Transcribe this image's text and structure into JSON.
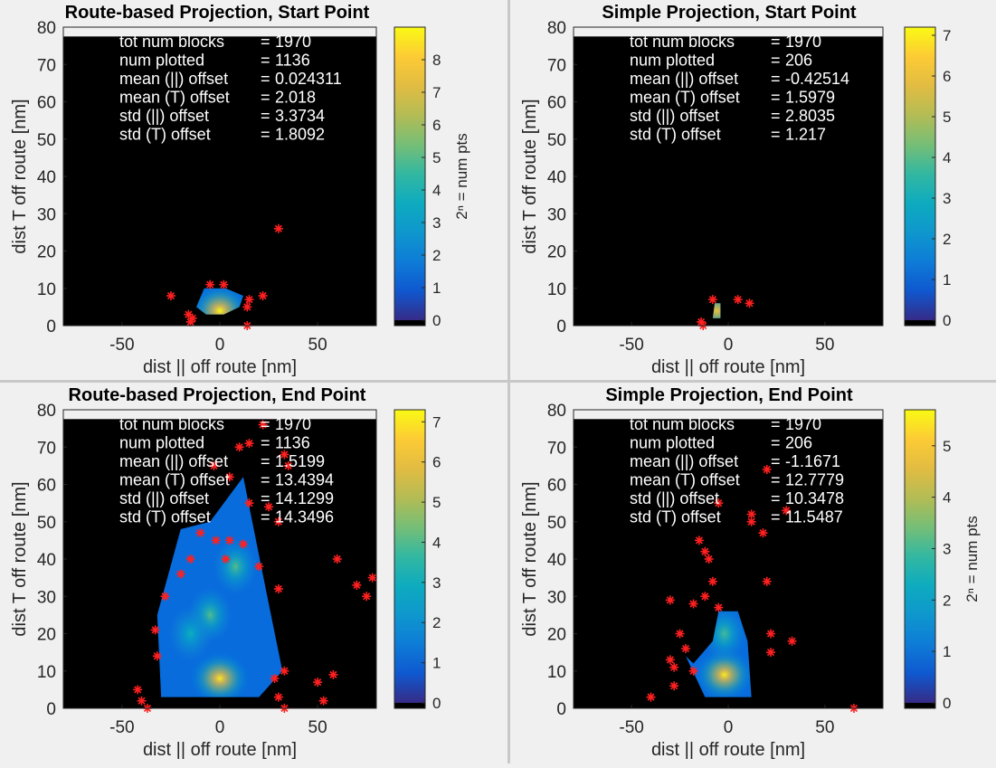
{
  "figure": {
    "background": "#f0f0f0",
    "plot_background": "#000000"
  },
  "chart_data": [
    {
      "type": "heatmap",
      "title": "Route-based Projection, Start Point",
      "xlabel": "dist || off route [nm]",
      "ylabel": "dist T off route [nm]",
      "xlim": [
        -80,
        80
      ],
      "ylim": [
        0,
        80
      ],
      "xticks": [
        -50,
        0,
        50
      ],
      "yticks": [
        0,
        10,
        20,
        30,
        40,
        50,
        60,
        70,
        80
      ],
      "colorbar": {
        "label": "2ⁿ = num pts",
        "ticks": [
          0,
          1,
          2,
          3,
          4,
          5,
          6,
          7,
          8
        ],
        "max": 9
      },
      "stats": [
        {
          "label": "tot num blocks",
          "value": "1970"
        },
        {
          "label": "num plotted",
          "value": "1136"
        },
        {
          "label": "mean (||) offset",
          "value": "0.024311"
        },
        {
          "label": "mean (T) offset",
          "value": "2.018"
        },
        {
          "label": "std (||) offset",
          "value": "3.3734"
        },
        {
          "label": "std (T) offset",
          "value": "1.8092"
        }
      ],
      "density_regions": [
        {
          "x": [
            -7,
            2,
            10,
            12,
            3,
            -8,
            -12
          ],
          "y": [
            3,
            3,
            5,
            8,
            10,
            10,
            5
          ]
        }
      ],
      "density_blobs": [
        {
          "x": 0,
          "y": 4,
          "value": 9
        }
      ],
      "outliers": [
        {
          "x": 30,
          "y": 26
        },
        {
          "x": -25,
          "y": 8
        },
        {
          "x": -14,
          "y": 2
        },
        {
          "x": -15,
          "y": 1
        },
        {
          "x": -5,
          "y": 11
        },
        {
          "x": 2,
          "y": 11
        },
        {
          "x": 22,
          "y": 8
        },
        {
          "x": 14,
          "y": 5
        },
        {
          "x": 15,
          "y": 7
        },
        {
          "x": 14,
          "y": 0
        },
        {
          "x": -16,
          "y": 3
        }
      ]
    },
    {
      "type": "heatmap",
      "title": "Simple Projection, Start Point",
      "xlabel": "dist || off route [nm]",
      "ylabel": "dist T off route [nm]",
      "xlim": [
        -80,
        80
      ],
      "ylim": [
        0,
        80
      ],
      "xticks": [
        -50,
        0,
        50
      ],
      "yticks": [
        0,
        10,
        20,
        30,
        40,
        50,
        60,
        70,
        80
      ],
      "colorbar": {
        "label": "",
        "ticks": [
          0,
          1,
          2,
          3,
          4,
          5,
          6,
          7
        ],
        "max": 7.2
      },
      "stats": [
        {
          "label": "tot num blocks",
          "value": "1970"
        },
        {
          "label": "num plotted",
          "value": "206"
        },
        {
          "label": "mean (||) offset",
          "value": "-0.42514"
        },
        {
          "label": "mean (T) offset",
          "value": "1.5979"
        },
        {
          "label": "std (||) offset",
          "value": "2.8035"
        },
        {
          "label": "std (T) offset",
          "value": "1.217"
        }
      ],
      "density_regions": [
        {
          "x": [
            -8,
            -4,
            -4,
            -7
          ],
          "y": [
            2,
            2,
            6,
            6
          ]
        }
      ],
      "density_blobs": [
        {
          "x": -6,
          "y": 4,
          "value": 6
        }
      ],
      "outliers": [
        {
          "x": -8,
          "y": 7
        },
        {
          "x": 5,
          "y": 7
        },
        {
          "x": 11,
          "y": 6
        },
        {
          "x": -14,
          "y": 1
        },
        {
          "x": -13,
          "y": 0
        }
      ]
    },
    {
      "type": "heatmap",
      "title": "Route-based Projection, End Point",
      "xlabel": "dist || off route [nm]",
      "ylabel": "dist T off route [nm]",
      "xlim": [
        -80,
        80
      ],
      "ylim": [
        0,
        80
      ],
      "xticks": [
        -50,
        0,
        50
      ],
      "yticks": [
        0,
        10,
        20,
        30,
        40,
        50,
        60,
        70,
        80
      ],
      "colorbar": {
        "label": "",
        "ticks": [
          0,
          1,
          2,
          3,
          4,
          5,
          6,
          7
        ],
        "max": 7.3
      },
      "stats": [
        {
          "label": "tot num blocks",
          "value": "1970"
        },
        {
          "label": "num plotted",
          "value": "1136"
        },
        {
          "label": "mean (||) offset",
          "value": "1.5199"
        },
        {
          "label": "mean (T) offset",
          "value": "13.4394"
        },
        {
          "label": "std (||) offset",
          "value": "14.1299"
        },
        {
          "label": "std (T) offset",
          "value": "14.3496"
        }
      ],
      "density_regions": [
        {
          "x": [
            -30,
            -20,
            -10,
            2,
            12,
            20,
            32,
            25,
            12,
            -5,
            -20,
            -32
          ],
          "y": [
            3,
            3,
            3,
            3,
            3,
            3,
            10,
            28,
            62,
            50,
            48,
            25
          ]
        }
      ],
      "density_blobs": [
        {
          "x": 0,
          "y": 8,
          "value": 7
        },
        {
          "x": -5,
          "y": 25,
          "value": 4
        },
        {
          "x": 8,
          "y": 38,
          "value": 4
        },
        {
          "x": -15,
          "y": 20,
          "value": 3
        }
      ],
      "outliers": [
        {
          "x": 22,
          "y": 76
        },
        {
          "x": 10,
          "y": 70
        },
        {
          "x": 15,
          "y": 71
        },
        {
          "x": -3,
          "y": 65
        },
        {
          "x": 5,
          "y": 62
        },
        {
          "x": 15,
          "y": 55
        },
        {
          "x": 25,
          "y": 54
        },
        {
          "x": 30,
          "y": 50
        },
        {
          "x": -10,
          "y": 47
        },
        {
          "x": -2,
          "y": 45
        },
        {
          "x": 5,
          "y": 45
        },
        {
          "x": 12,
          "y": 44
        },
        {
          "x": -15,
          "y": 40
        },
        {
          "x": -20,
          "y": 36
        },
        {
          "x": 3,
          "y": 40
        },
        {
          "x": 20,
          "y": 38
        },
        {
          "x": 35,
          "y": 65
        },
        {
          "x": -28,
          "y": 30
        },
        {
          "x": -33,
          "y": 21
        },
        {
          "x": -32,
          "y": 14
        },
        {
          "x": 33,
          "y": 10
        },
        {
          "x": 28,
          "y": 8
        },
        {
          "x": 30,
          "y": 3
        },
        {
          "x": 33,
          "y": 0
        },
        {
          "x": -42,
          "y": 5
        },
        {
          "x": -40,
          "y": 2
        },
        {
          "x": -37,
          "y": 0
        },
        {
          "x": 50,
          "y": 7
        },
        {
          "x": 58,
          "y": 9
        },
        {
          "x": 53,
          "y": 2
        },
        {
          "x": 75,
          "y": 30
        },
        {
          "x": 78,
          "y": 35
        },
        {
          "x": 70,
          "y": 33
        },
        {
          "x": 60,
          "y": 40
        },
        {
          "x": 30,
          "y": 32
        },
        {
          "x": 33,
          "y": 68
        }
      ]
    },
    {
      "type": "heatmap",
      "title": "Simple Projection, End Point",
      "xlabel": "dist || off route [nm]",
      "ylabel": "dist T off route [nm]",
      "xlim": [
        -80,
        80
      ],
      "ylim": [
        0,
        80
      ],
      "xticks": [
        -50,
        0,
        50
      ],
      "yticks": [
        0,
        10,
        20,
        30,
        40,
        50,
        60,
        70,
        80
      ],
      "colorbar": {
        "label": "2ⁿ = num pts",
        "ticks": [
          0,
          1,
          2,
          3,
          4,
          5
        ],
        "max": 5.7
      },
      "stats": [
        {
          "label": "tot num blocks",
          "value": "1970"
        },
        {
          "label": "num plotted",
          "value": "206"
        },
        {
          "label": "mean (||) offset",
          "value": "-1.1671"
        },
        {
          "label": "mean (T) offset",
          "value": "12.7779"
        },
        {
          "label": "std (||) offset",
          "value": "10.3478"
        },
        {
          "label": "std (T) offset",
          "value": "11.5487"
        }
      ],
      "density_regions": [
        {
          "x": [
            -22,
            -12,
            -5,
            5,
            12,
            10,
            5,
            -5,
            -8,
            -18
          ],
          "y": [
            14,
            3,
            3,
            3,
            3,
            18,
            26,
            26,
            18,
            12
          ]
        }
      ],
      "density_blobs": [
        {
          "x": -2,
          "y": 9,
          "value": 5.5
        },
        {
          "x": -2,
          "y": 20,
          "value": 3
        }
      ],
      "outliers": [
        {
          "x": 20,
          "y": 64
        },
        {
          "x": 30,
          "y": 53
        },
        {
          "x": -5,
          "y": 55
        },
        {
          "x": 12,
          "y": 52
        },
        {
          "x": 12,
          "y": 50
        },
        {
          "x": 18,
          "y": 47
        },
        {
          "x": -15,
          "y": 45
        },
        {
          "x": -12,
          "y": 42
        },
        {
          "x": -10,
          "y": 40
        },
        {
          "x": -8,
          "y": 34
        },
        {
          "x": 20,
          "y": 34
        },
        {
          "x": -12,
          "y": 30
        },
        {
          "x": -30,
          "y": 29
        },
        {
          "x": -18,
          "y": 28
        },
        {
          "x": -5,
          "y": 27
        },
        {
          "x": -25,
          "y": 20
        },
        {
          "x": 22,
          "y": 20
        },
        {
          "x": 33,
          "y": 18
        },
        {
          "x": 22,
          "y": 15
        },
        {
          "x": -28,
          "y": 11
        },
        {
          "x": -30,
          "y": 13
        },
        {
          "x": -22,
          "y": 16
        },
        {
          "x": -18,
          "y": 10
        },
        {
          "x": -28,
          "y": 6
        },
        {
          "x": -40,
          "y": 3
        },
        {
          "x": 65,
          "y": 0
        }
      ]
    }
  ]
}
